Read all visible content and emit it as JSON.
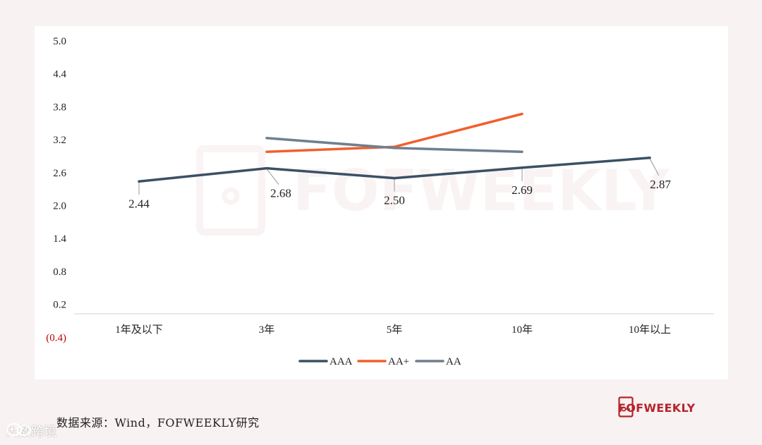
{
  "chart_data": {
    "type": "line",
    "categories": [
      "1年及以下",
      "3年",
      "5年",
      "10年",
      "10年以上"
    ],
    "y_ticks": [
      "5.0",
      "4.4",
      "3.8",
      "3.2",
      "2.6",
      "2.0",
      "1.4",
      "0.8",
      "0.2",
      "(0.4)"
    ],
    "ylim": [
      -0.4,
      5.0
    ],
    "grid": false,
    "legend_position": "bottom",
    "series": [
      {
        "name": "AAA",
        "color": "#3b5064",
        "values": [
          2.44,
          2.68,
          2.5,
          2.69,
          2.87
        ]
      },
      {
        "name": "AA+",
        "color": "#f0602d",
        "values": [
          null,
          2.98,
          3.07,
          3.67,
          null
        ]
      },
      {
        "name": "AA",
        "color": "#6f7f8e",
        "values": [
          null,
          3.23,
          3.05,
          2.98,
          null
        ]
      }
    ],
    "data_labels": [
      "2.44",
      "2.68",
      "2.50",
      "2.69",
      "2.87"
    ]
  },
  "footer": {
    "source": "数据来源：Wind，FOFWEEKLY研究",
    "brand": "FOFWEEKLY"
  },
  "watermark": {
    "center_text": "FOFWEEKLY",
    "corner_text": "大数跨境"
  }
}
